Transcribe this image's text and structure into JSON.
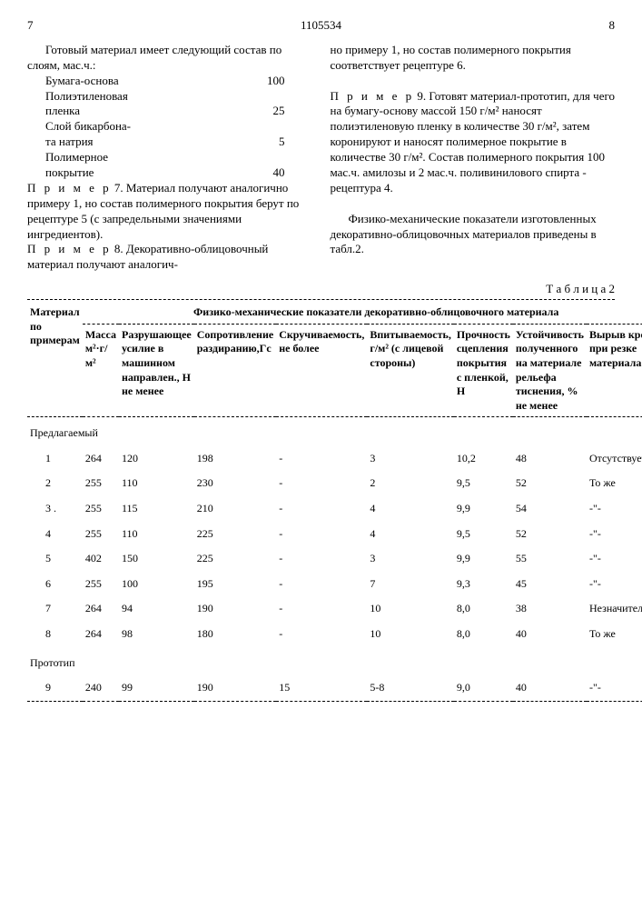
{
  "header": {
    "page_left": "7",
    "doc_num": "1105534",
    "page_right": "8"
  },
  "left_col": {
    "p1": "Готовый материал имеет следующий состав по слоям, мас.ч.:",
    "comp": [
      {
        "label": "Бумага-основа",
        "val": "100"
      },
      {
        "label": "Полиэтиленовая",
        "val": ""
      },
      {
        "label": "пленка",
        "val": "25"
      },
      {
        "label": "Слой бикарбона-",
        "val": ""
      },
      {
        "label": "та натрия",
        "val": "5"
      },
      {
        "label": "Полимерное",
        "val": ""
      },
      {
        "label": "покрытие",
        "val": "40"
      }
    ],
    "p2a": "П р и м е р",
    "p2b": "  7. Материал получают аналогично примеру 1, но состав полимерного покрытия берут по рецептуре 5 (с запредельными значениями ингредиентов).",
    "p3a": "П р и м е р",
    "p3b": "  8. Декоративно-облицовочный материал получают аналогич-"
  },
  "right_col": {
    "p1": "но примеру 1, но состав полимерного покрытия соответствует рецептуре 6.",
    "p2a": "П р и м е р",
    "p2b": "  9. Готовят материал-прототип, для чего на бумагу-основу массой 150 г/м² наносят полиэтиленовую пленку в количестве 30 г/м², затем коронируют и наносят полимерное покрытие в количестве 30 г/м². Состав полимерного покрытия 100 мас.ч. амилозы и 2 мас.ч. поливинилового спирта - рецептура 4.",
    "p3": "Физико-механические показатели изготовленных декоративно-облицовочных материалов приведены в табл.2."
  },
  "table_label": "Т а б л и ц а  2",
  "th": {
    "c0": "Материал по примерам",
    "merged": "Физико-механические показатели декоративно-облицовочного материала",
    "c1": "Масса м²·г/м²",
    "c2": "Разрушающее усилие в машинном направлен., Н не менее",
    "c3": "Сопротивление раздиранию,Гс",
    "c4": "Скручиваемость, не более",
    "c5": "Впитываемость, г/м² (с лицевой стороны)",
    "c6": "Прочность сцепления покрытия с пленкой, Н",
    "c7": "Устойчивость полученного на материале рельефа тиснения, % не менее",
    "c8": "Вырыв кромки при резке материала"
  },
  "sections": {
    "s1": "Предлагаемый",
    "s2": "Прототип"
  },
  "rows": [
    [
      "1",
      "264",
      "120",
      "198",
      "-",
      "3",
      "10,2",
      "48",
      "Отсутствует"
    ],
    [
      "2",
      "255",
      "110",
      "230",
      "-",
      "2",
      "9,5",
      "52",
      "То же"
    ],
    [
      "3 .",
      "255",
      "115",
      "210",
      "-",
      "4",
      "9,9",
      "54",
      "-\"-"
    ],
    [
      "4",
      "255",
      "110",
      "225",
      "-",
      "4",
      "9,5",
      "52",
      "-\"-"
    ],
    [
      "5",
      "402",
      "150",
      "225",
      "-",
      "3",
      "9,9",
      "55",
      "-\"-"
    ],
    [
      "6",
      "255",
      "100",
      "195",
      "-",
      "7",
      "9,3",
      "45",
      "-\"-"
    ],
    [
      "7",
      "264",
      "94",
      "190",
      "-",
      "10",
      "8,0",
      "38",
      "Незначительный"
    ],
    [
      "8",
      "264",
      "98",
      "180",
      "-",
      "10",
      "8,0",
      "40",
      "То же"
    ]
  ],
  "row_proto": [
    "9",
    "240",
    "99",
    "190",
    "15",
    "5-8",
    "9,0",
    "40",
    "-\"-"
  ]
}
